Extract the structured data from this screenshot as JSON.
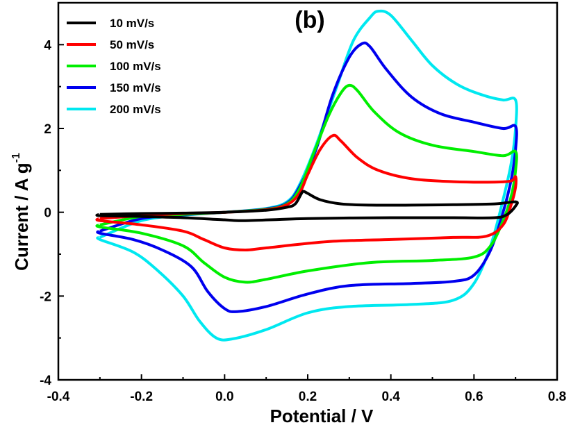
{
  "chart_data": {
    "type": "line",
    "panel_label": "(b)",
    "xlabel": "Potential / V",
    "ylabel": {
      "main": "Current / A g",
      "sup": "-1"
    },
    "xlim": [
      -0.4,
      0.8
    ],
    "ylim": [
      -4,
      5
    ],
    "x_ticks": [
      "-0.4",
      "-0.2",
      "0.0",
      "0.2",
      "0.4",
      "0.6",
      "0.8"
    ],
    "x_tick_values": [
      -0.4,
      -0.2,
      0.0,
      0.2,
      0.4,
      0.6,
      0.8
    ],
    "y_ticks": [
      "-4",
      "-2",
      "0",
      "2",
      "4"
    ],
    "y_tick_values": [
      -4,
      -2,
      0,
      2,
      4
    ],
    "grid": false,
    "legend_position": "top-left",
    "series": [
      {
        "name": "10 mV/s",
        "color": "#000000",
        "points": [
          [
            -0.3,
            -0.05
          ],
          [
            -0.2,
            -0.03
          ],
          [
            -0.1,
            -0.02
          ],
          [
            0.0,
            0.0
          ],
          [
            0.1,
            0.05
          ],
          [
            0.15,
            0.12
          ],
          [
            0.17,
            0.2
          ],
          [
            0.185,
            0.45
          ],
          [
            0.19,
            0.5
          ],
          [
            0.2,
            0.45
          ],
          [
            0.23,
            0.3
          ],
          [
            0.28,
            0.2
          ],
          [
            0.35,
            0.17
          ],
          [
            0.45,
            0.17
          ],
          [
            0.55,
            0.18
          ],
          [
            0.65,
            0.2
          ],
          [
            0.7,
            0.25
          ],
          [
            0.7,
            0.15
          ],
          [
            0.68,
            -0.05
          ],
          [
            0.65,
            -0.13
          ],
          [
            0.55,
            -0.13
          ],
          [
            0.4,
            -0.13
          ],
          [
            0.2,
            -0.15
          ],
          [
            0.05,
            -0.2
          ],
          [
            0.0,
            -0.18
          ],
          [
            -0.1,
            -0.13
          ],
          [
            -0.2,
            -0.1
          ],
          [
            -0.3,
            -0.08
          ]
        ]
      },
      {
        "name": "50 mV/s",
        "color": "#ff0000",
        "points": [
          [
            -0.3,
            -0.15
          ],
          [
            -0.2,
            -0.08
          ],
          [
            -0.1,
            -0.03
          ],
          [
            0.0,
            0.0
          ],
          [
            0.1,
            0.06
          ],
          [
            0.15,
            0.18
          ],
          [
            0.18,
            0.45
          ],
          [
            0.2,
            0.9
          ],
          [
            0.23,
            1.5
          ],
          [
            0.26,
            1.83
          ],
          [
            0.28,
            1.7
          ],
          [
            0.32,
            1.3
          ],
          [
            0.37,
            1.0
          ],
          [
            0.45,
            0.8
          ],
          [
            0.55,
            0.73
          ],
          [
            0.65,
            0.72
          ],
          [
            0.69,
            0.75
          ],
          [
            0.7,
            0.85
          ],
          [
            0.7,
            0.6
          ],
          [
            0.69,
            0.2
          ],
          [
            0.67,
            -0.3
          ],
          [
            0.63,
            -0.57
          ],
          [
            0.55,
            -0.6
          ],
          [
            0.4,
            -0.65
          ],
          [
            0.25,
            -0.7
          ],
          [
            0.1,
            -0.85
          ],
          [
            0.05,
            -0.9
          ],
          [
            0.0,
            -0.85
          ],
          [
            -0.05,
            -0.65
          ],
          [
            -0.1,
            -0.45
          ],
          [
            -0.2,
            -0.3
          ],
          [
            -0.3,
            -0.2
          ]
        ]
      },
      {
        "name": "100 mV/s",
        "color": "#00ee00",
        "points": [
          [
            -0.3,
            -0.3
          ],
          [
            -0.2,
            -0.1
          ],
          [
            -0.1,
            -0.05
          ],
          [
            0.0,
            0.0
          ],
          [
            0.1,
            0.07
          ],
          [
            0.15,
            0.2
          ],
          [
            0.18,
            0.55
          ],
          [
            0.21,
            1.3
          ],
          [
            0.25,
            2.3
          ],
          [
            0.28,
            2.85
          ],
          [
            0.3,
            3.03
          ],
          [
            0.32,
            2.9
          ],
          [
            0.36,
            2.4
          ],
          [
            0.42,
            1.9
          ],
          [
            0.5,
            1.6
          ],
          [
            0.6,
            1.45
          ],
          [
            0.67,
            1.35
          ],
          [
            0.7,
            1.45
          ],
          [
            0.7,
            1.0
          ],
          [
            0.69,
            0.4
          ],
          [
            0.67,
            -0.2
          ],
          [
            0.64,
            -0.8
          ],
          [
            0.6,
            -1.07
          ],
          [
            0.5,
            -1.15
          ],
          [
            0.35,
            -1.2
          ],
          [
            0.2,
            -1.4
          ],
          [
            0.1,
            -1.6
          ],
          [
            0.05,
            -1.67
          ],
          [
            0.0,
            -1.55
          ],
          [
            -0.05,
            -1.2
          ],
          [
            -0.1,
            -0.8
          ],
          [
            -0.2,
            -0.5
          ],
          [
            -0.3,
            -0.35
          ]
        ]
      },
      {
        "name": "150 mV/s",
        "color": "#0000ee",
        "points": [
          [
            -0.3,
            -0.45
          ],
          [
            -0.2,
            -0.15
          ],
          [
            -0.1,
            -0.06
          ],
          [
            0.0,
            0.0
          ],
          [
            0.1,
            0.08
          ],
          [
            0.15,
            0.22
          ],
          [
            0.18,
            0.6
          ],
          [
            0.22,
            1.5
          ],
          [
            0.26,
            2.8
          ],
          [
            0.3,
            3.7
          ],
          [
            0.33,
            4.02
          ],
          [
            0.35,
            3.95
          ],
          [
            0.39,
            3.4
          ],
          [
            0.45,
            2.75
          ],
          [
            0.52,
            2.35
          ],
          [
            0.6,
            2.15
          ],
          [
            0.67,
            2.0
          ],
          [
            0.7,
            2.05
          ],
          [
            0.7,
            1.5
          ],
          [
            0.69,
            0.8
          ],
          [
            0.67,
            0.0
          ],
          [
            0.64,
            -0.9
          ],
          [
            0.6,
            -1.5
          ],
          [
            0.55,
            -1.65
          ],
          [
            0.45,
            -1.7
          ],
          [
            0.3,
            -1.75
          ],
          [
            0.2,
            -1.95
          ],
          [
            0.1,
            -2.25
          ],
          [
            0.03,
            -2.37
          ],
          [
            0.0,
            -2.3
          ],
          [
            -0.04,
            -1.9
          ],
          [
            -0.08,
            -1.3
          ],
          [
            -0.15,
            -0.9
          ],
          [
            -0.22,
            -0.65
          ],
          [
            -0.3,
            -0.5
          ]
        ]
      },
      {
        "name": "200 mV/s",
        "color": "#00e8f0",
        "points": [
          [
            -0.3,
            -0.6
          ],
          [
            -0.2,
            -0.2
          ],
          [
            -0.1,
            -0.07
          ],
          [
            0.0,
            0.0
          ],
          [
            0.1,
            0.09
          ],
          [
            0.15,
            0.25
          ],
          [
            0.18,
            0.65
          ],
          [
            0.22,
            1.6
          ],
          [
            0.27,
            3.0
          ],
          [
            0.31,
            4.1
          ],
          [
            0.35,
            4.65
          ],
          [
            0.37,
            4.8
          ],
          [
            0.4,
            4.7
          ],
          [
            0.45,
            4.1
          ],
          [
            0.5,
            3.5
          ],
          [
            0.56,
            3.05
          ],
          [
            0.62,
            2.8
          ],
          [
            0.67,
            2.68
          ],
          [
            0.7,
            2.68
          ],
          [
            0.7,
            2.0
          ],
          [
            0.69,
            1.2
          ],
          [
            0.67,
            0.3
          ],
          [
            0.64,
            -0.8
          ],
          [
            0.6,
            -1.7
          ],
          [
            0.55,
            -2.1
          ],
          [
            0.45,
            -2.2
          ],
          [
            0.3,
            -2.25
          ],
          [
            0.2,
            -2.4
          ],
          [
            0.1,
            -2.8
          ],
          [
            0.02,
            -3.02
          ],
          [
            -0.02,
            -3.0
          ],
          [
            -0.06,
            -2.6
          ],
          [
            -0.1,
            -2.0
          ],
          [
            -0.16,
            -1.4
          ],
          [
            -0.22,
            -0.95
          ],
          [
            -0.3,
            -0.65
          ]
        ]
      }
    ]
  }
}
